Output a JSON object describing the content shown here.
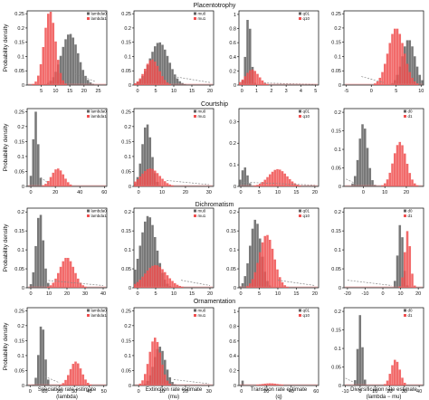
{
  "figure": {
    "row_titles": [
      "Placentotrophy",
      "Courtship",
      "Dichromatism",
      "Ornamentation"
    ],
    "y_axis_label": "Probability density",
    "column_xlabels": [
      [
        "Speciation rate estimate",
        "(lambda)"
      ],
      [
        "Extinction rate estimate",
        "(mu)"
      ],
      [
        "Transition rate estimate",
        "(q)"
      ],
      [
        "Diversification rate estimate",
        "(lambda − mu)"
      ]
    ],
    "colors": {
      "state0": "#606060",
      "state1": "#f05050",
      "overlap": "#a03232",
      "prior": "#888888",
      "prior1": "#e87a7a"
    }
  },
  "chart_data": [
    {
      "type": "histogram",
      "row": "Placentotrophy",
      "xlabel": "",
      "xlim": [
        0,
        28
      ],
      "xticks": [
        5,
        10,
        15,
        20,
        25
      ],
      "ylim": [
        0,
        0.26
      ],
      "yticks": [
        0,
        0.05,
        0.1,
        0.15,
        0.2,
        0.25
      ],
      "legend": {
        "position": "top-right",
        "entries": [
          "lambda0",
          "lambda1"
        ]
      },
      "series": [
        {
          "name": "lambda0",
          "state": 0,
          "center": 15,
          "sd": 3,
          "peak": 0.18
        },
        {
          "name": "lambda1",
          "state": 1,
          "center": 8,
          "sd": 2,
          "peak": 0.26
        }
      ],
      "prior_tail": {
        "start": 17,
        "end": 24,
        "level": 0.04
      }
    },
    {
      "type": "histogram",
      "row": "Placentotrophy",
      "xlabel": "",
      "xlim": [
        -1,
        21
      ],
      "xticks": [
        0,
        5,
        10,
        15,
        20
      ],
      "ylim": [
        0,
        0.26
      ],
      "yticks": [
        0,
        0.05,
        0.1,
        0.15,
        0.2,
        0.25
      ],
      "legend": {
        "position": "top-right",
        "entries": [
          "mu0",
          "mu1"
        ]
      },
      "series": [
        {
          "name": "mu0",
          "state": 0,
          "center": 6,
          "sd": 2.6,
          "peak": 0.15
        },
        {
          "name": "mu1",
          "state": 1,
          "center": 4,
          "sd": 2,
          "peak": 0.09
        }
      ],
      "prior_tail": {
        "start": 10,
        "end": 20,
        "level": 0.03
      }
    },
    {
      "type": "histogram",
      "row": "Placentotrophy",
      "xlabel": "",
      "xlim": [
        -0.2,
        5.2
      ],
      "xticks": [
        0,
        1,
        2,
        3,
        4,
        5
      ],
      "ylim": [
        0,
        1.05
      ],
      "yticks": [
        0,
        0.2,
        0.4,
        0.6,
        0.8,
        1.0
      ],
      "legend": {
        "position": "top-right",
        "entries": [
          "q01",
          "q10"
        ]
      },
      "series": [
        {
          "name": "q01",
          "state": 0,
          "center": 0.45,
          "sd": 0.17,
          "peak": 0.98
        },
        {
          "name": "q10",
          "state": 1,
          "center": 0.7,
          "sd": 0.45,
          "peak": 0.22
        }
      ],
      "prior_tail": {
        "start": 1.5,
        "end": 5,
        "level": 0.03
      }
    },
    {
      "type": "histogram",
      "row": "Placentotrophy",
      "xlabel": "",
      "xlim": [
        -5.5,
        10.5
      ],
      "xticks": [
        -5,
        0,
        5,
        10
      ],
      "ylim": [
        0,
        0.26
      ],
      "yticks": [
        0,
        0.05,
        0.1,
        0.15,
        0.2,
        0.25
      ],
      "legend": {
        "position": "top-left",
        "entries": []
      },
      "series": [
        {
          "name": "",
          "state": 0,
          "center": 7.5,
          "sd": 1.3,
          "peak": 0.16
        },
        {
          "name": "",
          "state": 1,
          "center": 5,
          "sd": 1.6,
          "peak": 0.2
        }
      ],
      "prior_tail": {
        "start": -2,
        "end": 2.5,
        "level": 0.03
      }
    },
    {
      "type": "histogram",
      "row": "Courtship",
      "xlabel": "",
      "xlim": [
        -3,
        62
      ],
      "xticks": [
        0,
        20,
        40,
        60
      ],
      "ylim": [
        0,
        0.26
      ],
      "yticks": [
        0,
        0.05,
        0.1,
        0.15,
        0.2,
        0.25
      ],
      "legend": {
        "position": "top-right",
        "entries": [
          "lambda0",
          "lambda1"
        ]
      },
      "series": [
        {
          "name": "lambda0",
          "state": 0,
          "center": 4,
          "sd": 2,
          "peak": 0.25
        },
        {
          "name": "lambda1",
          "state": 1,
          "center": 22,
          "sd": 5,
          "peak": 0.06
        }
      ],
      "prior_tail": {
        "start": 8,
        "end": 15,
        "level": 0.03
      }
    },
    {
      "type": "histogram",
      "row": "Courtship",
      "xlabel": "",
      "xlim": [
        -2,
        32
      ],
      "xticks": [
        0,
        10,
        20,
        30
      ],
      "ylim": [
        0,
        0.26
      ],
      "yticks": [
        0,
        0.05,
        0.1,
        0.15,
        0.2,
        0.25
      ],
      "legend": {
        "position": "top-right",
        "entries": [
          "mu0",
          "mu1"
        ]
      },
      "series": [
        {
          "name": "mu0",
          "state": 0,
          "center": 3.5,
          "sd": 2,
          "peak": 0.21
        },
        {
          "name": "mu1",
          "state": 1,
          "center": 5,
          "sd": 4,
          "peak": 0.06
        }
      ],
      "prior_tail": {
        "start": 12,
        "end": 30,
        "level": 0.02
      }
    },
    {
      "type": "histogram",
      "row": "Courtship",
      "xlabel": "",
      "xlim": [
        -0.5,
        21
      ],
      "xticks": [
        0,
        5,
        10,
        15,
        20
      ],
      "ylim": [
        0,
        0.36
      ],
      "yticks": [
        0,
        0.1,
        0.2,
        0.3
      ],
      "legend": {
        "position": "top-right",
        "entries": [
          "q01",
          "q10"
        ]
      },
      "series": [
        {
          "name": "q01",
          "state": 0,
          "center": 1,
          "sd": 0.8,
          "peak": 0.09
        },
        {
          "name": "q10",
          "state": 1,
          "center": 10,
          "sd": 2.5,
          "peak": 0.08
        }
      ],
      "prior_tail": {
        "start": 0,
        "end": 20,
        "level": 0.02
      }
    },
    {
      "type": "histogram",
      "row": "Courtship",
      "xlabel": "",
      "xlim": [
        -9,
        28
      ],
      "xticks": [
        0,
        10,
        20
      ],
      "ylim": [
        0,
        0.21
      ],
      "yticks": [
        0,
        0.05,
        0.1,
        0.15,
        0.2
      ],
      "legend": {
        "position": "top-right",
        "entries": [
          "d0",
          "d1"
        ]
      },
      "series": [
        {
          "name": "d0",
          "state": 0,
          "center": 0,
          "sd": 2,
          "peak": 0.17
        },
        {
          "name": "d1",
          "state": 1,
          "center": 17,
          "sd": 3,
          "peak": 0.12
        }
      ],
      "prior_tail": {
        "start": -8,
        "end": -3,
        "level": 0.02
      }
    },
    {
      "type": "histogram",
      "row": "Dichromatism",
      "xlabel": "",
      "xlim": [
        -2,
        42
      ],
      "xticks": [
        0,
        10,
        20,
        30,
        40
      ],
      "ylim": [
        0,
        0.21
      ],
      "yticks": [
        0,
        0.05,
        0.1,
        0.15,
        0.2
      ],
      "legend": {
        "position": "top-right",
        "entries": [
          "lambda0",
          "lambda1"
        ]
      },
      "series": [
        {
          "name": "lambda0",
          "state": 0,
          "center": 5,
          "sd": 2,
          "peak": 0.2
        },
        {
          "name": "lambda1",
          "state": 1,
          "center": 20,
          "sd": 4,
          "peak": 0.08
        }
      ],
      "prior_tail": {
        "start": 8,
        "end": 40,
        "level": 0.02
      }
    },
    {
      "type": "histogram",
      "row": "Dichromatism",
      "xlabel": "",
      "xlim": [
        -1,
        21
      ],
      "xticks": [
        0,
        5,
        10,
        15,
        20
      ],
      "ylim": [
        0,
        0.21
      ],
      "yticks": [
        0,
        0.05,
        0.1,
        0.15,
        0.2
      ],
      "legend": {
        "position": "top-right",
        "entries": [
          "mu0",
          "mu1"
        ]
      },
      "series": [
        {
          "name": "mu0",
          "state": 0,
          "center": 3,
          "sd": 2.2,
          "peak": 0.19
        },
        {
          "name": "mu1",
          "state": 1,
          "center": 5,
          "sd": 3,
          "peak": 0.06
        }
      ],
      "prior_tail": {
        "start": 12,
        "end": 20,
        "level": 0.02
      }
    },
    {
      "type": "histogram",
      "row": "Dichromatism",
      "xlabel": "",
      "xlim": [
        -0.5,
        21
      ],
      "xticks": [
        0,
        5,
        10,
        15,
        20
      ],
      "ylim": [
        0,
        0.21
      ],
      "yticks": [
        0,
        0.05,
        0.1,
        0.15,
        0.2
      ],
      "legend": {
        "position": "top-right",
        "entries": [
          "q01",
          "q10"
        ]
      },
      "series": [
        {
          "name": "q01",
          "state": 0,
          "center": 4,
          "sd": 1.5,
          "peak": 0.18
        },
        {
          "name": "q10",
          "state": 1,
          "center": 7,
          "sd": 2,
          "peak": 0.14
        }
      ],
      "prior_tail": {
        "start": 10,
        "end": 20,
        "level": 0.02
      }
    },
    {
      "type": "histogram",
      "row": "Dichromatism",
      "xlabel": "",
      "xlim": [
        -22,
        23
      ],
      "xticks": [
        -20,
        -10,
        0,
        10,
        20
      ],
      "ylim": [
        0,
        0.21
      ],
      "yticks": [
        0,
        0.05,
        0.1,
        0.15,
        0.2
      ],
      "legend": {
        "position": "top-right",
        "entries": [
          "d0",
          "d1"
        ]
      },
      "series": [
        {
          "name": "d0",
          "state": 0,
          "center": 10,
          "sd": 1.5,
          "peak": 0.17
        },
        {
          "name": "d1",
          "state": 1,
          "center": 14,
          "sd": 1.6,
          "peak": 0.15
        }
      ],
      "prior_tail": {
        "start": -20,
        "end": 5,
        "level": 0.02
      }
    },
    {
      "type": "histogram",
      "row": "Ornamentation",
      "xlabel": "",
      "xlim": [
        -2,
        52
      ],
      "xticks": [
        0,
        10,
        20,
        30,
        40,
        50
      ],
      "ylim": [
        0,
        0.26
      ],
      "yticks": [
        0,
        0.05,
        0.1,
        0.15,
        0.2,
        0.25
      ],
      "legend": {
        "position": "top-right",
        "entries": [
          "lambda0",
          "lambda1"
        ]
      },
      "series": [
        {
          "name": "lambda0",
          "state": 0,
          "center": 8,
          "sd": 2,
          "peak": 0.21
        },
        {
          "name": "lambda1",
          "state": 1,
          "center": 31,
          "sd": 4,
          "peak": 0.08
        }
      ],
      "prior_tail": {
        "start": 10,
        "end": 20,
        "level": 0.03
      }
    },
    {
      "type": "histogram",
      "row": "Ornamentation",
      "xlabel": "",
      "xlim": [
        -2,
        32
      ],
      "xticks": [
        0,
        10,
        20,
        30
      ],
      "ylim": [
        0,
        0.26
      ],
      "yticks": [
        0,
        0.05,
        0.1,
        0.15,
        0.2,
        0.25
      ],
      "legend": {
        "position": "top-right",
        "entries": [
          "mu0",
          "mu1"
        ]
      },
      "series": [
        {
          "name": "mu0",
          "state": 0,
          "center": 9,
          "sd": 2.5,
          "peak": 0.13
        },
        {
          "name": "mu1",
          "state": 1,
          "center": 7,
          "sd": 2.5,
          "peak": 0.16
        }
      ],
      "prior_tail": {
        "start": 15,
        "end": 30,
        "level": 0.02
      }
    },
    {
      "type": "histogram",
      "row": "Ornamentation",
      "xlabel": "",
      "xlim": [
        -2,
        62
      ],
      "xticks": [
        0,
        20,
        40,
        60
      ],
      "ylim": [
        0,
        1.05
      ],
      "yticks": [
        0,
        0.2,
        0.4,
        0.6,
        0.8,
        1.0
      ],
      "legend": {
        "position": "top-right",
        "entries": [
          "q01",
          "q10"
        ]
      },
      "series": [
        {
          "name": "q01",
          "state": 0,
          "center": 0.3,
          "sd": 0.3,
          "peak": 1.0
        },
        {
          "name": "q10",
          "state": 1,
          "center": 23,
          "sd": 7,
          "peak": 0.03
        }
      ],
      "prior_tail": {
        "start": 0,
        "end": 60,
        "level": 0.0
      }
    },
    {
      "type": "histogram",
      "row": "Ornamentation",
      "xlabel": "",
      "xlim": [
        -11,
        43
      ],
      "xticks": [
        -10,
        0,
        10,
        20,
        30,
        40
      ],
      "ylim": [
        0,
        0.21
      ],
      "yticks": [
        0,
        0.05,
        0.1,
        0.15,
        0.2
      ],
      "legend": {
        "position": "top-right",
        "entries": [
          "d0",
          "d1"
        ]
      },
      "series": [
        {
          "name": "d0",
          "state": 0,
          "center": 0,
          "sd": 1.5,
          "peak": 0.19
        },
        {
          "name": "d1",
          "state": 1,
          "center": 24,
          "sd": 3,
          "peak": 0.07
        }
      ],
      "prior_tail": {
        "start": -10,
        "end": -3,
        "level": 0.02
      }
    }
  ]
}
